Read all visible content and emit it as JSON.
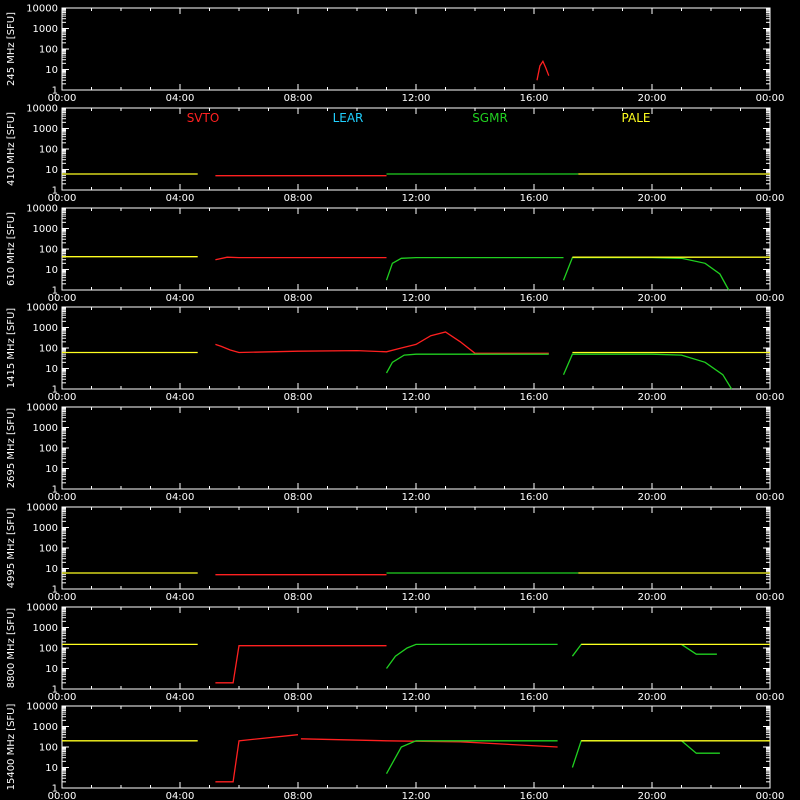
{
  "chart_data": {
    "type": "line",
    "x_ticks": [
      "00:00",
      "04:00",
      "08:00",
      "12:00",
      "16:00",
      "20:00",
      "00:00"
    ],
    "xlim": [
      "00:00",
      "24:00"
    ],
    "yscale": "log",
    "ylim": [
      1,
      10000
    ],
    "y_ticks": [
      "1",
      "10",
      "100",
      "1000",
      "10000"
    ],
    "legend": [
      {
        "name": "SVTO",
        "color": "#ff2020"
      },
      {
        "name": "LEAR",
        "color": "#20d0ff"
      },
      {
        "name": "SGMR",
        "color": "#20d020"
      },
      {
        "name": "PALE",
        "color": "#ffff20"
      }
    ],
    "panels": [
      {
        "ylabel": "245 MHz [SFU]",
        "series": [
          {
            "station": "SVTO",
            "x": [
              16.1,
              16.2,
              16.3,
              16.4,
              16.5
            ],
            "y": [
              3,
              15,
              25,
              12,
              5
            ]
          }
        ]
      },
      {
        "ylabel": "410 MHz [SFU]",
        "series": [
          {
            "station": "PALE",
            "x": [
              0,
              4.6
            ],
            "y": [
              6,
              6
            ]
          },
          {
            "station": "SVTO",
            "x": [
              5.2,
              11.0
            ],
            "y": [
              5,
              5
            ]
          },
          {
            "station": "SGMR",
            "x": [
              11.0,
              17.5
            ],
            "y": [
              6,
              6
            ]
          },
          {
            "station": "PALE",
            "x": [
              17.5,
              24
            ],
            "y": [
              6,
              6
            ]
          }
        ]
      },
      {
        "ylabel": "610 MHz [SFU]",
        "series": [
          {
            "station": "PALE",
            "x": [
              0,
              4.6
            ],
            "y": [
              42,
              42
            ]
          },
          {
            "station": "SVTO",
            "x": [
              5.2,
              5.6,
              6,
              8,
              10,
              11.0
            ],
            "y": [
              30,
              40,
              38,
              38,
              38,
              38
            ]
          },
          {
            "station": "SGMR",
            "x": [
              11.0,
              11.2,
              11.5,
              12,
              16,
              17.0
            ],
            "y": [
              3,
              20,
              35,
              38,
              38,
              38
            ]
          },
          {
            "station": "SGMR",
            "x": [
              17.0,
              17.3,
              20,
              21,
              21.8,
              22.3,
              22.6
            ],
            "y": [
              3,
              38,
              38,
              35,
              20,
              6,
              1
            ]
          },
          {
            "station": "PALE",
            "x": [
              17.3,
              24
            ],
            "y": [
              40,
              40
            ]
          }
        ]
      },
      {
        "ylabel": "1415 MHz [SFU]",
        "series": [
          {
            "station": "PALE",
            "x": [
              0,
              4.6
            ],
            "y": [
              60,
              60
            ]
          },
          {
            "station": "SVTO",
            "x": [
              5.2,
              5.4,
              5.7,
              6,
              8,
              10,
              11,
              11.5,
              12,
              12.5,
              13,
              13.5,
              14,
              16.5
            ],
            "y": [
              150,
              120,
              80,
              60,
              70,
              75,
              65,
              100,
              150,
              400,
              600,
              200,
              55,
              55
            ]
          },
          {
            "station": "SGMR",
            "x": [
              11.0,
              11.2,
              11.6,
              12,
              16.5
            ],
            "y": [
              6,
              20,
              45,
              50,
              50
            ]
          },
          {
            "station": "SGMR",
            "x": [
              17.0,
              17.3,
              20,
              21,
              21.8,
              22.4,
              22.7
            ],
            "y": [
              5,
              50,
              50,
              45,
              20,
              5,
              1
            ]
          },
          {
            "station": "PALE",
            "x": [
              17.3,
              24
            ],
            "y": [
              60,
              60
            ]
          }
        ]
      },
      {
        "ylabel": "2695 MHz [SFU]",
        "series": []
      },
      {
        "ylabel": "4995 MHz [SFU]",
        "series": [
          {
            "station": "PALE",
            "x": [
              0,
              4.6
            ],
            "y": [
              6,
              6
            ]
          },
          {
            "station": "SVTO",
            "x": [
              5.2,
              11.0
            ],
            "y": [
              5,
              5
            ]
          },
          {
            "station": "SGMR",
            "x": [
              11.0,
              17.5
            ],
            "y": [
              6,
              6
            ]
          },
          {
            "station": "PALE",
            "x": [
              17.5,
              24
            ],
            "y": [
              6,
              6
            ]
          }
        ]
      },
      {
        "ylabel": "8800 MHz [SFU]",
        "series": [
          {
            "station": "PALE",
            "x": [
              0,
              4.6
            ],
            "y": [
              150,
              150
            ]
          },
          {
            "station": "SVTO",
            "x": [
              5.2,
              5.8,
              6,
              11.0
            ],
            "y": [
              2,
              2,
              130,
              130
            ]
          },
          {
            "station": "SGMR",
            "x": [
              11.0,
              11.3,
              11.7,
              12,
              16.8
            ],
            "y": [
              10,
              40,
              100,
              150,
              150
            ]
          },
          {
            "station": "SGMR",
            "x": [
              17.3,
              17.6,
              20,
              21,
              21.5,
              22.2
            ],
            "y": [
              40,
              150,
              150,
              150,
              50,
              50
            ]
          },
          {
            "station": "PALE",
            "x": [
              17.6,
              24
            ],
            "y": [
              150,
              150
            ]
          }
        ]
      },
      {
        "ylabel": "15400 MHz [SFU]",
        "series": [
          {
            "station": "PALE",
            "x": [
              0,
              4.6
            ],
            "y": [
              200,
              200
            ]
          },
          {
            "station": "SVTO",
            "x": [
              5.2,
              5.8,
              6,
              8.0
            ],
            "y": [
              2,
              2,
              200,
              400
            ]
          },
          {
            "station": "SVTO",
            "x": [
              8.1,
              11.0,
              13.5,
              16.8
            ],
            "y": [
              250,
              200,
              180,
              100
            ]
          },
          {
            "station": "SGMR",
            "x": [
              11.0,
              11.5,
              12,
              16.8
            ],
            "y": [
              5,
              100,
              200,
              200
            ]
          },
          {
            "station": "SGMR",
            "x": [
              17.3,
              17.6,
              20,
              21,
              21.5,
              22.3
            ],
            "y": [
              10,
              200,
              200,
              200,
              50,
              50
            ]
          },
          {
            "station": "PALE",
            "x": [
              17.6,
              24
            ],
            "y": [
              200,
              200
            ]
          }
        ]
      }
    ]
  }
}
